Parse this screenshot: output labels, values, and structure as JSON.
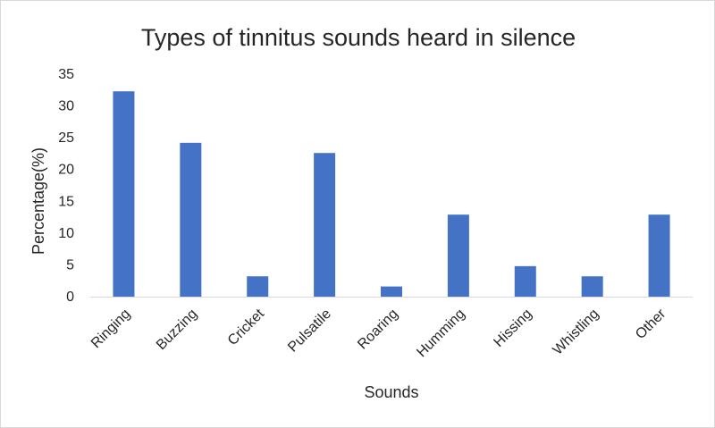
{
  "chart_data": {
    "type": "bar",
    "title": "Types of tinnitus sounds heard in silence",
    "xlabel": "Sounds",
    "ylabel": "Percentage(%)",
    "categories": [
      "Ringing",
      "Buzzing",
      "Cricket",
      "Pulsatile",
      "Roaring",
      "Humming",
      "Hissing",
      "Whistling",
      "Other"
    ],
    "values": [
      32.3,
      24.2,
      3.2,
      22.6,
      1.6,
      12.9,
      4.8,
      3.2,
      12.9
    ],
    "ylim": [
      0,
      35
    ],
    "yticks": [
      0,
      5,
      10,
      15,
      20,
      25,
      30,
      35
    ],
    "grid": false,
    "legend": "none",
    "bar_color": "#4472c4"
  }
}
